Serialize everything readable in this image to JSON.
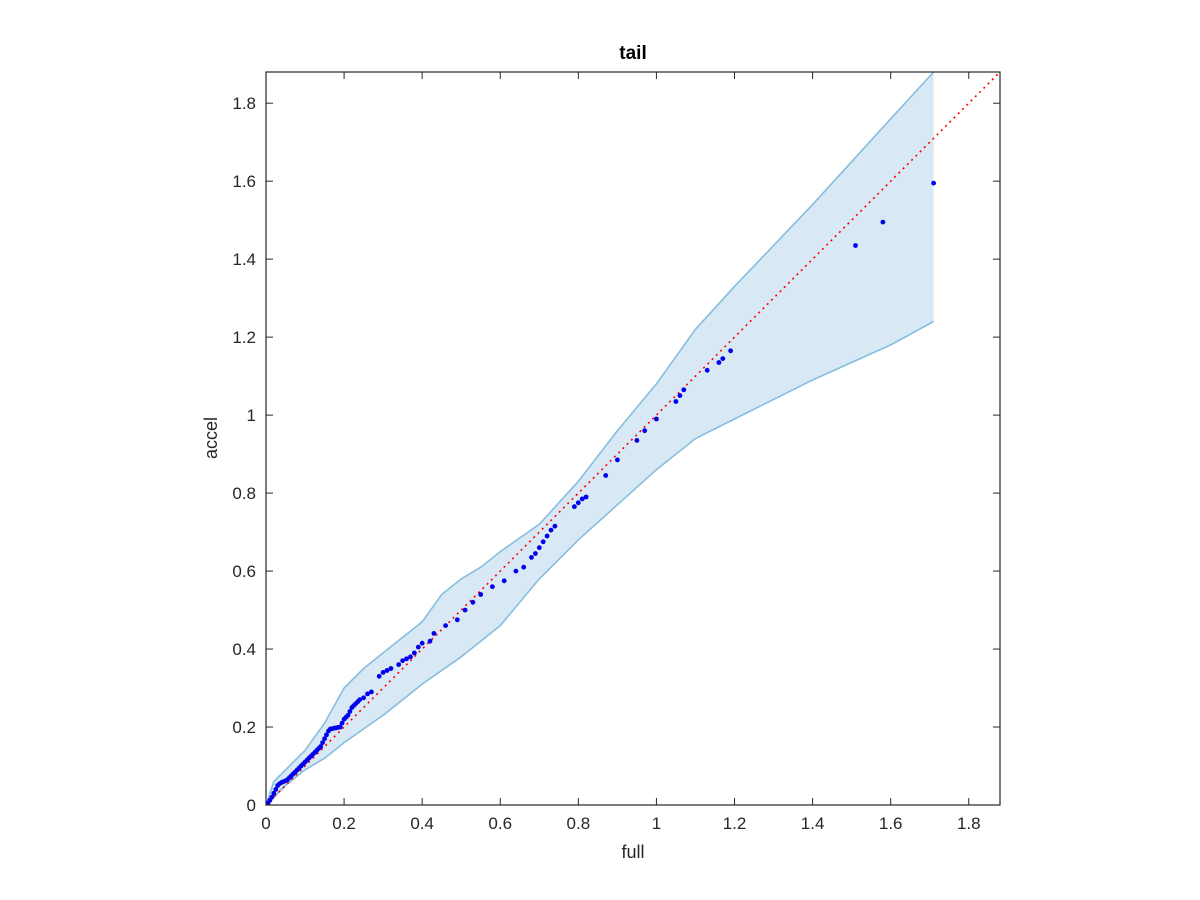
{
  "chart_data": {
    "type": "scatter",
    "title": "tail",
    "xlabel": "full",
    "ylabel": "accel",
    "xlim": [
      0,
      1.88
    ],
    "ylim": [
      0,
      1.88
    ],
    "xticks": [
      "0",
      "0.2",
      "0.4",
      "0.6",
      "0.8",
      "1",
      "1.2",
      "1.4",
      "1.6",
      "1.8"
    ],
    "yticks": [
      "0",
      "0.2",
      "0.4",
      "0.6",
      "0.8",
      "1",
      "1.2",
      "1.4",
      "1.6",
      "1.8"
    ],
    "tick_values": [
      0,
      0.2,
      0.4,
      0.6,
      0.8,
      1.0,
      1.2,
      1.4,
      1.6,
      1.8
    ],
    "grid": false,
    "series": [
      {
        "type": "band",
        "color": "#d8e8f4",
        "edge_color": "#86bde0",
        "upper": [
          [
            0,
            0
          ],
          [
            0.02,
            0.06
          ],
          [
            0.05,
            0.09
          ],
          [
            0.1,
            0.14
          ],
          [
            0.15,
            0.21
          ],
          [
            0.2,
            0.3
          ],
          [
            0.25,
            0.35
          ],
          [
            0.3,
            0.39
          ],
          [
            0.4,
            0.47
          ],
          [
            0.45,
            0.54
          ],
          [
            0.5,
            0.58
          ],
          [
            0.55,
            0.61
          ],
          [
            0.6,
            0.65
          ],
          [
            0.7,
            0.72
          ],
          [
            0.8,
            0.83
          ],
          [
            0.9,
            0.96
          ],
          [
            1.0,
            1.08
          ],
          [
            1.1,
            1.22
          ],
          [
            1.2,
            1.33
          ],
          [
            1.4,
            1.54
          ],
          [
            1.6,
            1.76
          ],
          [
            1.71,
            1.88
          ]
        ],
        "lower": [
          [
            0,
            0
          ],
          [
            0.05,
            0.05
          ],
          [
            0.1,
            0.09
          ],
          [
            0.15,
            0.12
          ],
          [
            0.2,
            0.16
          ],
          [
            0.3,
            0.23
          ],
          [
            0.4,
            0.31
          ],
          [
            0.5,
            0.38
          ],
          [
            0.6,
            0.46
          ],
          [
            0.7,
            0.58
          ],
          [
            0.8,
            0.68
          ],
          [
            0.9,
            0.77
          ],
          [
            1.0,
            0.86
          ],
          [
            1.1,
            0.94
          ],
          [
            1.2,
            0.99
          ],
          [
            1.4,
            1.09
          ],
          [
            1.6,
            1.18
          ],
          [
            1.71,
            1.24
          ]
        ]
      },
      {
        "type": "line",
        "style": "dotted",
        "color": "#ff0000",
        "points": [
          [
            0,
            0
          ],
          [
            1.88,
            1.88
          ]
        ]
      },
      {
        "type": "scatter",
        "color": "#0000ee",
        "x": [
          0.005,
          0.01,
          0.015,
          0.02,
          0.025,
          0.03,
          0.035,
          0.04,
          0.045,
          0.05,
          0.055,
          0.06,
          0.065,
          0.07,
          0.075,
          0.08,
          0.085,
          0.09,
          0.095,
          0.1,
          0.105,
          0.11,
          0.115,
          0.12,
          0.125,
          0.13,
          0.135,
          0.14,
          0.145,
          0.15,
          0.155,
          0.16,
          0.165,
          0.17,
          0.175,
          0.18,
          0.185,
          0.19,
          0.195,
          0.2,
          0.205,
          0.21,
          0.215,
          0.22,
          0.225,
          0.23,
          0.235,
          0.24,
          0.25,
          0.26,
          0.27,
          0.29,
          0.3,
          0.31,
          0.32,
          0.34,
          0.35,
          0.36,
          0.37,
          0.38,
          0.39,
          0.4,
          0.42,
          0.43,
          0.46,
          0.49,
          0.51,
          0.53,
          0.55,
          0.58,
          0.61,
          0.64,
          0.66,
          0.68,
          0.69,
          0.7,
          0.71,
          0.72,
          0.73,
          0.74,
          0.79,
          0.8,
          0.81,
          0.82,
          0.87,
          0.9,
          0.95,
          0.97,
          1.0,
          1.05,
          1.06,
          1.07,
          1.13,
          1.16,
          1.17,
          1.19,
          1.51,
          1.58,
          1.71
        ],
        "y": [
          0.005,
          0.012,
          0.02,
          0.03,
          0.04,
          0.05,
          0.055,
          0.058,
          0.06,
          0.062,
          0.065,
          0.07,
          0.075,
          0.08,
          0.085,
          0.09,
          0.095,
          0.1,
          0.105,
          0.11,
          0.115,
          0.12,
          0.125,
          0.13,
          0.135,
          0.14,
          0.145,
          0.15,
          0.16,
          0.17,
          0.18,
          0.19,
          0.195,
          0.196,
          0.197,
          0.198,
          0.199,
          0.2,
          0.21,
          0.22,
          0.225,
          0.23,
          0.24,
          0.25,
          0.255,
          0.26,
          0.265,
          0.27,
          0.275,
          0.285,
          0.29,
          0.33,
          0.34,
          0.345,
          0.35,
          0.36,
          0.37,
          0.375,
          0.38,
          0.39,
          0.405,
          0.415,
          0.42,
          0.44,
          0.46,
          0.475,
          0.5,
          0.52,
          0.54,
          0.56,
          0.575,
          0.6,
          0.61,
          0.635,
          0.645,
          0.66,
          0.675,
          0.69,
          0.705,
          0.715,
          0.765,
          0.775,
          0.785,
          0.79,
          0.845,
          0.885,
          0.935,
          0.96,
          0.99,
          1.035,
          1.05,
          1.065,
          1.115,
          1.135,
          1.145,
          1.165,
          1.435,
          1.495,
          1.595
        ]
      }
    ]
  }
}
